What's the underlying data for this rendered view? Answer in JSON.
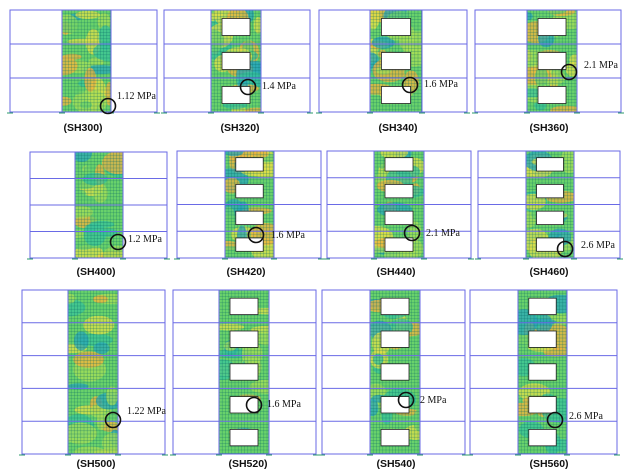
{
  "colors": {
    "frame": "#6a6ae6",
    "mesh_line": "#0b6a68",
    "marker": "#111111",
    "contour": [
      "#2aa7b8",
      "#38c39a",
      "#69d26b",
      "#a7dd55",
      "#e0df47",
      "#f2b23c"
    ]
  },
  "panels": [
    {
      "caption": "(SH300)",
      "stress": "1.12 MPa",
      "openings": false
    },
    {
      "caption": "(SH320)",
      "stress": "1.4 MPa",
      "openings": true
    },
    {
      "caption": "(SH340)",
      "stress": "1.6 MPa",
      "openings": true
    },
    {
      "caption": "(SH360)",
      "stress": "2.1 MPa",
      "openings": true
    },
    {
      "caption": "(SH400)",
      "stress": "1.2 MPa",
      "openings": false
    },
    {
      "caption": "(SH420)",
      "stress": "1.6 MPa",
      "openings": true
    },
    {
      "caption": "(SH440)",
      "stress": "2.1 MPa",
      "openings": true
    },
    {
      "caption": "(SH460)",
      "stress": "2.6 MPa",
      "openings": true
    },
    {
      "caption": "(SH500)",
      "stress": "1.22 MPa",
      "openings": false
    },
    {
      "caption": "(SH520)",
      "stress": "1.6 MPa",
      "openings": true
    },
    {
      "caption": "(SH540)",
      "stress": "2 MPa",
      "openings": true
    },
    {
      "caption": "(SH560)",
      "stress": "2.6 MPa",
      "openings": true
    }
  ]
}
